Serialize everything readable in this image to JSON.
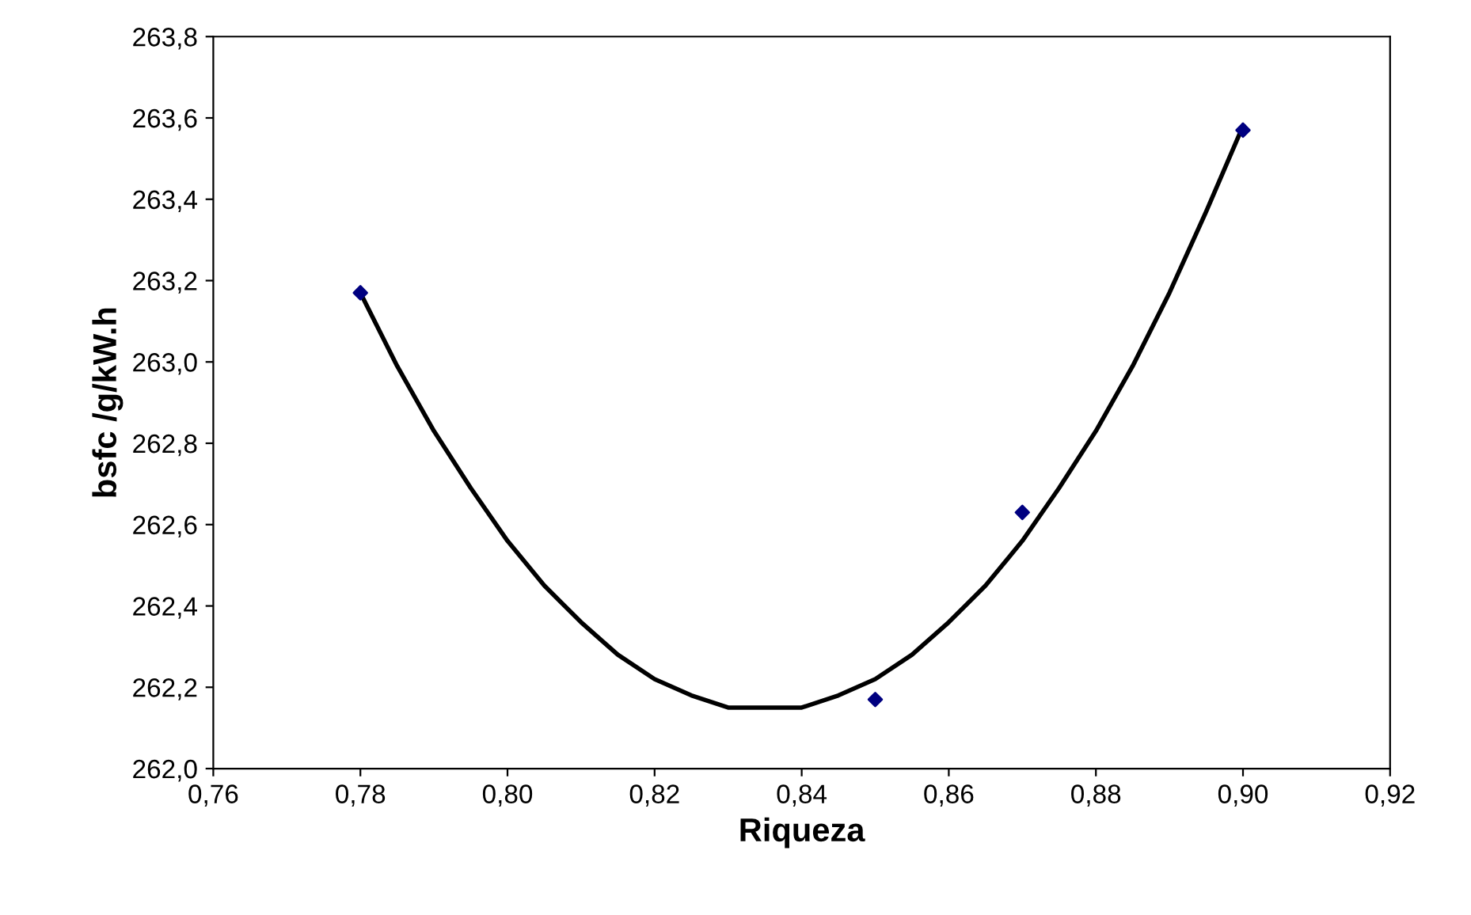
{
  "chart_data": {
    "type": "scatter",
    "xlabel": "Riqueza",
    "ylabel": "bsfc /g/kW.h",
    "xlim": [
      0.76,
      0.92
    ],
    "xticks": [
      {
        "value": 0.76,
        "label": "0,76"
      },
      {
        "value": 0.78,
        "label": "0,78"
      },
      {
        "value": 0.8,
        "label": "0,80"
      },
      {
        "value": 0.82,
        "label": "0,82"
      },
      {
        "value": 0.84,
        "label": "0,84"
      },
      {
        "value": 0.86,
        "label": "0,86"
      },
      {
        "value": 0.88,
        "label": "0,88"
      },
      {
        "value": 0.9,
        "label": "0,90"
      },
      {
        "value": 0.92,
        "label": "0,92"
      }
    ],
    "ylim": [
      262.0,
      263.8
    ],
    "yticks": [
      {
        "value": 262.0,
        "label": "262,0"
      },
      {
        "value": 262.2,
        "label": "262,2"
      },
      {
        "value": 262.4,
        "label": "262,4"
      },
      {
        "value": 262.6,
        "label": "262,6"
      },
      {
        "value": 262.8,
        "label": "262,8"
      },
      {
        "value": 263.0,
        "label": "263,0"
      },
      {
        "value": 263.2,
        "label": "263,2"
      },
      {
        "value": 263.4,
        "label": "263,4"
      },
      {
        "value": 263.6,
        "label": "263,6"
      },
      {
        "value": 263.8,
        "label": "263,8"
      }
    ],
    "grid": false,
    "legend": false,
    "series": [
      {
        "type": "line",
        "color": "#000000",
        "marker": "none",
        "line_style": "solid",
        "x": [
          0.78,
          0.785,
          0.79,
          0.795,
          0.8,
          0.805,
          0.81,
          0.815,
          0.82,
          0.825,
          0.83,
          0.835,
          0.84,
          0.845,
          0.85,
          0.855,
          0.86,
          0.865,
          0.87,
          0.875,
          0.88,
          0.885,
          0.89,
          0.895,
          0.9
        ],
        "values": [
          263.17,
          262.99,
          262.83,
          262.69,
          262.56,
          262.45,
          262.36,
          262.28,
          262.22,
          262.18,
          262.15,
          262.15,
          262.15,
          262.18,
          262.22,
          262.28,
          262.36,
          262.45,
          262.56,
          262.69,
          262.83,
          262.99,
          263.17,
          263.37,
          263.58
        ]
      },
      {
        "color": "#000080",
        "marker": "diamond",
        "x": [
          0.78,
          0.85,
          0.87,
          0.9
        ],
        "values": [
          263.17,
          262.17,
          262.63,
          263.57
        ]
      }
    ]
  }
}
